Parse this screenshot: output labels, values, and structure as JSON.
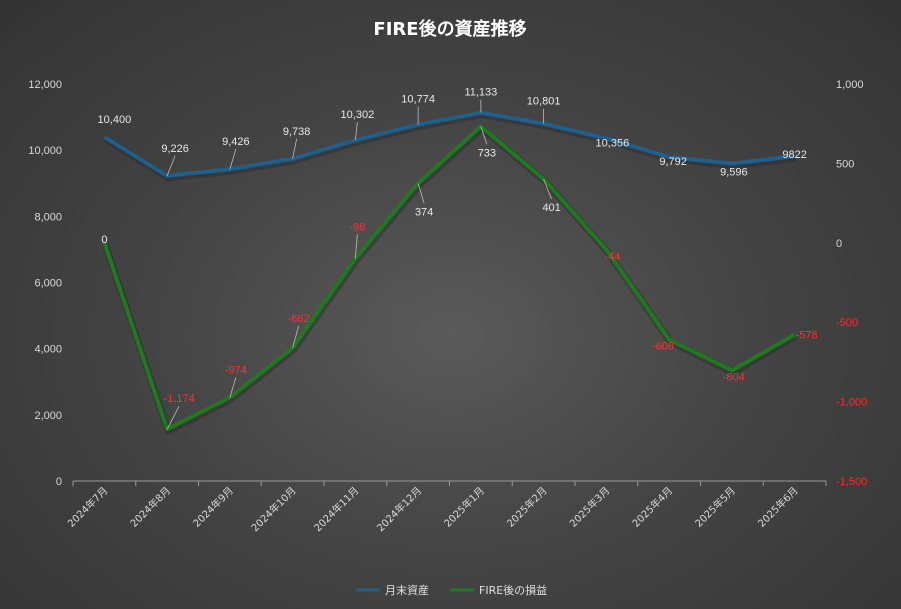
{
  "chart_data": {
    "type": "line",
    "title": "FIRE後の資産推移",
    "categories": [
      "2024年7月",
      "2024年8月",
      "2024年9月",
      "2024年10月",
      "2024年11月",
      "2024年12月",
      "2025年1月",
      "2025年2月",
      "2025年3月",
      "2025年4月",
      "2025年5月",
      "2025年6月"
    ],
    "series": [
      {
        "name": "月末資産",
        "axis": "left",
        "color": "#1f5f8b",
        "values": [
          10400,
          9226,
          9426,
          9738,
          10302,
          10774,
          11133,
          10801,
          10356,
          9792,
          9596,
          9822
        ],
        "labels": [
          "10,400",
          "9,226",
          "9,426",
          "9,738",
          "10,302",
          "10,774",
          "11,133",
          "10,801",
          "10,356",
          "9,792",
          "9,596",
          "9822"
        ]
      },
      {
        "name": "FIRE後の損益",
        "axis": "right",
        "color": "#1e7a1e",
        "values": [
          0,
          -1174,
          -974,
          -662,
          -98,
          374,
          733,
          401,
          -44,
          -608,
          -804,
          -578
        ],
        "labels": [
          "0",
          "-1,174",
          "-974",
          "-662",
          "-98",
          "374",
          "733",
          "401",
          "-44",
          "-608",
          "-804",
          "-578"
        ]
      }
    ],
    "y_left": {
      "min": 0,
      "max": 12000,
      "ticks": [
        "0",
        "2,000",
        "4,000",
        "6,000",
        "8,000",
        "10,000",
        "12,000"
      ]
    },
    "y_right": {
      "min": -1500,
      "max": 1000,
      "ticks": [
        "-1,500",
        "-1,000",
        "-500",
        "0",
        "500",
        "1,000"
      ]
    },
    "grid": false,
    "legend_position": "bottom",
    "colors": {
      "negative_text": "#ff2a2a"
    }
  }
}
